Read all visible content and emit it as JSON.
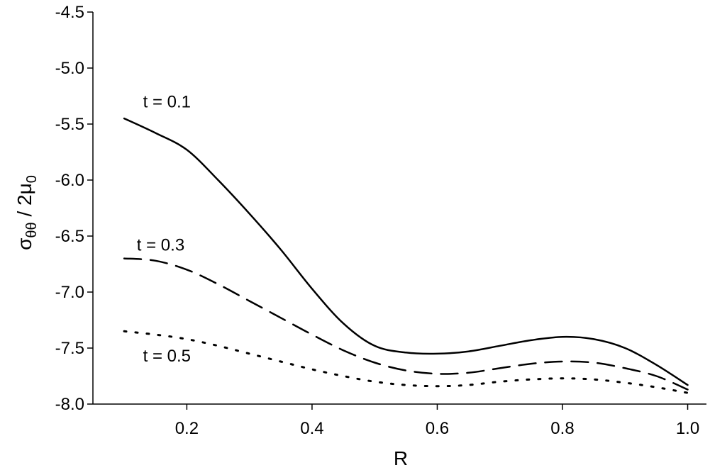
{
  "chart_data": {
    "type": "line",
    "title": "",
    "xlabel": "R",
    "ylabel": {
      "base": "σ",
      "sub1": "θθ",
      "mid": " / 2μ",
      "sub2": "0"
    },
    "xlim": [
      0.05,
      1.03
    ],
    "ylim": [
      -8.0,
      -4.5
    ],
    "xticks": [
      0.2,
      0.4,
      0.6,
      0.8,
      1.0
    ],
    "xtick_labels": [
      "0.2",
      "0.4",
      "0.6",
      "0.8",
      "1.0"
    ],
    "yticks": [
      -4.5,
      -5.0,
      -5.5,
      -6.0,
      -6.5,
      -7.0,
      -7.5,
      -8.0
    ],
    "ytick_labels": [
      "-4.5",
      "-5.0",
      "-5.5",
      "-6.0",
      "-6.5",
      "-7.0",
      "-7.5",
      "-8.0"
    ],
    "grid": false,
    "legend": "none",
    "series": [
      {
        "label": "t = 0.1",
        "style": "solid",
        "x": [
          0.1,
          0.15,
          0.2,
          0.25,
          0.3,
          0.35,
          0.4,
          0.45,
          0.5,
          0.55,
          0.6,
          0.65,
          0.7,
          0.75,
          0.8,
          0.85,
          0.9,
          0.95,
          1.0
        ],
        "y": [
          -5.45,
          -5.58,
          -5.73,
          -6.0,
          -6.3,
          -6.62,
          -6.97,
          -7.28,
          -7.48,
          -7.54,
          -7.55,
          -7.53,
          -7.48,
          -7.43,
          -7.4,
          -7.42,
          -7.5,
          -7.65,
          -7.83
        ]
      },
      {
        "label": "t = 0.3",
        "style": "dashed",
        "x": [
          0.1,
          0.15,
          0.2,
          0.25,
          0.3,
          0.35,
          0.4,
          0.45,
          0.5,
          0.55,
          0.6,
          0.65,
          0.7,
          0.75,
          0.8,
          0.85,
          0.9,
          0.95,
          1.0
        ],
        "y": [
          -6.7,
          -6.72,
          -6.8,
          -6.93,
          -7.08,
          -7.23,
          -7.38,
          -7.52,
          -7.63,
          -7.7,
          -7.73,
          -7.72,
          -7.68,
          -7.64,
          -7.62,
          -7.63,
          -7.68,
          -7.75,
          -7.87
        ]
      },
      {
        "label": "t = 0.5",
        "style": "dotted",
        "x": [
          0.1,
          0.15,
          0.2,
          0.25,
          0.3,
          0.35,
          0.4,
          0.45,
          0.5,
          0.55,
          0.6,
          0.65,
          0.7,
          0.75,
          0.8,
          0.85,
          0.9,
          0.95,
          1.0
        ],
        "y": [
          -7.35,
          -7.38,
          -7.42,
          -7.48,
          -7.55,
          -7.62,
          -7.69,
          -7.75,
          -7.8,
          -7.83,
          -7.84,
          -7.83,
          -7.8,
          -7.78,
          -7.77,
          -7.78,
          -7.81,
          -7.85,
          -7.9
        ]
      }
    ],
    "annotations": [
      {
        "text": "t = 0.1",
        "x": 0.13,
        "y": -5.3
      },
      {
        "text": "t = 0.3",
        "x": 0.12,
        "y": -6.58
      },
      {
        "text": "t = 0.5",
        "x": 0.13,
        "y": -7.57
      }
    ]
  }
}
